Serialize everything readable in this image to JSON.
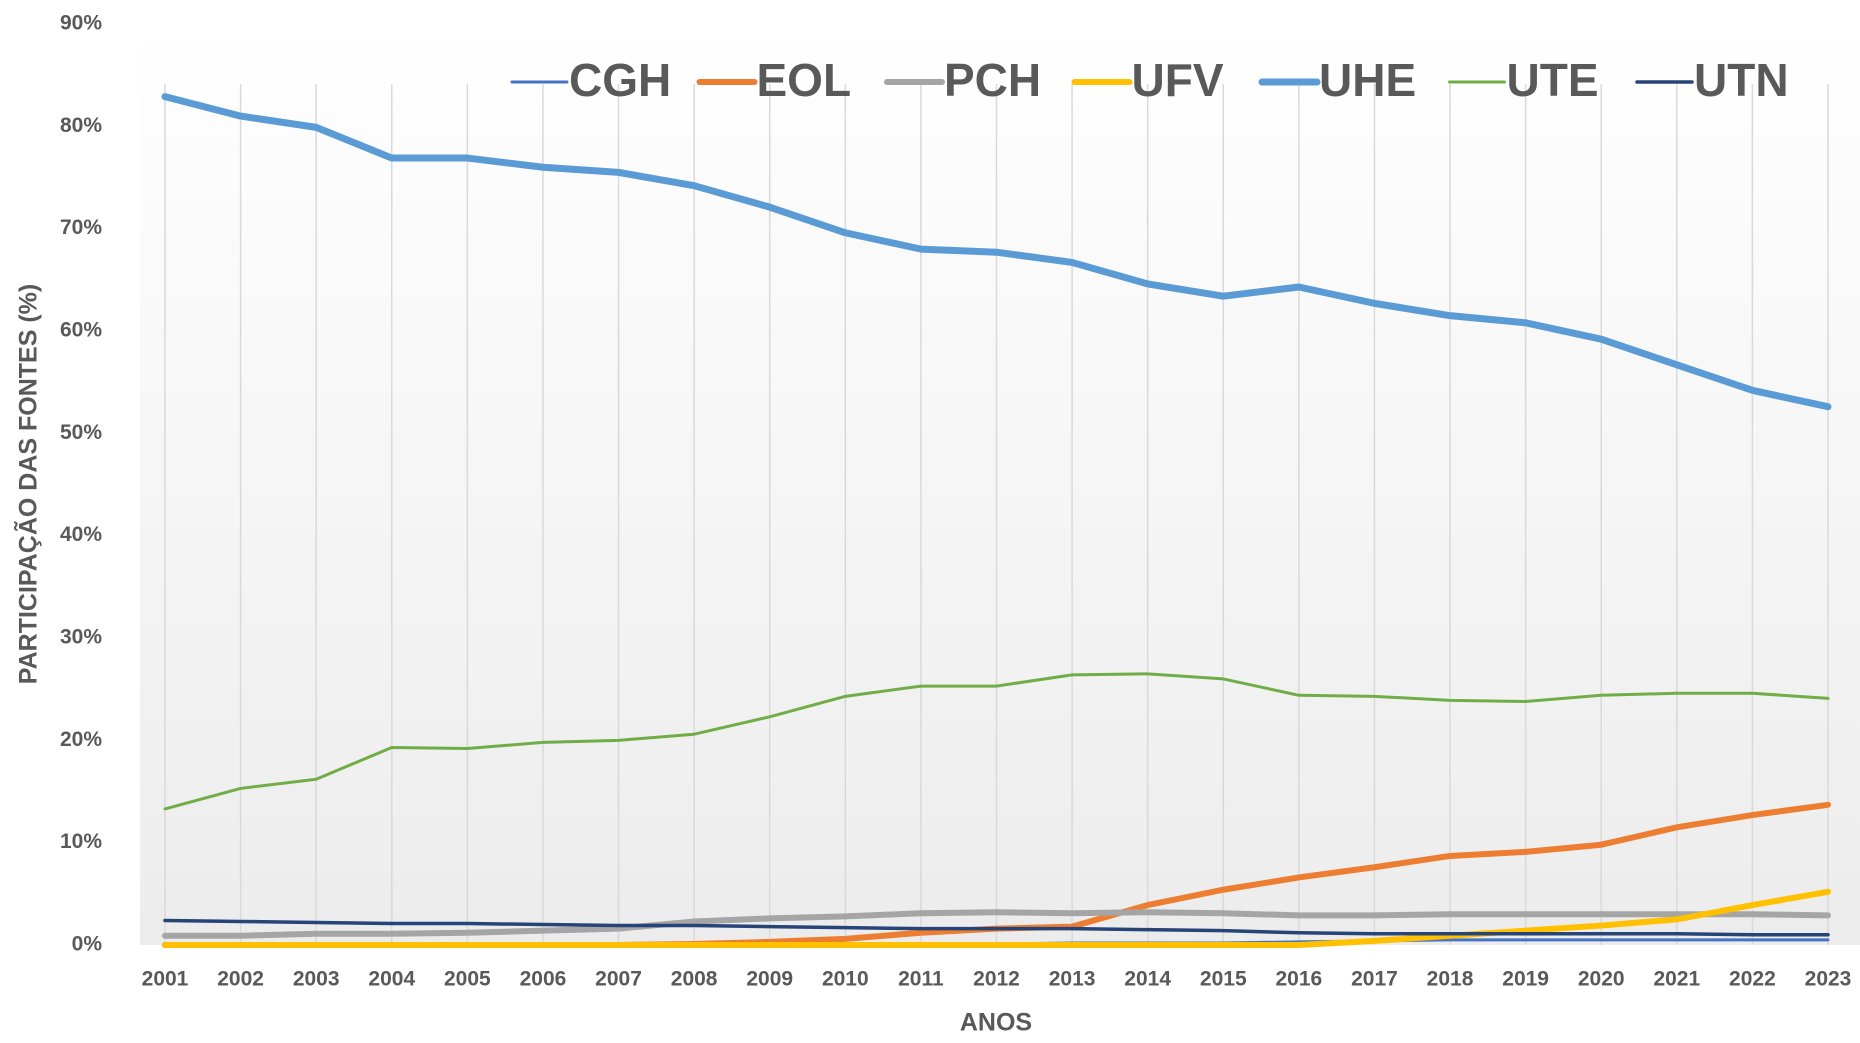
{
  "chart_data": {
    "type": "line",
    "y_label": "PARTICIPAÇÃO DAS FONTES (%)",
    "x_label": "ANOS",
    "categories": [
      "2001",
      "2002",
      "2003",
      "2004",
      "2005",
      "2006",
      "2007",
      "2008",
      "2009",
      "2010",
      "2011",
      "2012",
      "2013",
      "2014",
      "2015",
      "2016",
      "2017",
      "2018",
      "2019",
      "2020",
      "2021",
      "2022",
      "2023"
    ],
    "ylim": [
      0,
      90
    ],
    "yticks": [
      {
        "value": 0,
        "label": "0%"
      },
      {
        "value": 10,
        "label": "10%"
      },
      {
        "value": 20,
        "label": "20%"
      },
      {
        "value": 30,
        "label": "30%"
      },
      {
        "value": 40,
        "label": "40%"
      },
      {
        "value": 50,
        "label": "50%"
      },
      {
        "value": 60,
        "label": "60%"
      },
      {
        "value": 70,
        "label": "70%"
      },
      {
        "value": 80,
        "label": "80%"
      },
      {
        "value": 90,
        "label": "90%"
      }
    ],
    "grid": "x",
    "legend": "top",
    "series": [
      {
        "name": "CGH",
        "color": "#4472c4",
        "values": [
          0.1,
          0.1,
          0.1,
          0.1,
          0.1,
          0.1,
          0.1,
          0.1,
          0.1,
          0.1,
          0.1,
          0.1,
          0.2,
          0.2,
          0.2,
          0.3,
          0.4,
          0.5,
          0.5,
          0.5,
          0.5,
          0.5,
          0.5
        ]
      },
      {
        "name": "EOL",
        "color": "#ed7d31",
        "values": [
          0,
          0,
          0,
          0,
          0,
          0,
          0,
          0.1,
          0.3,
          0.6,
          1.2,
          1.6,
          1.8,
          3.9,
          5.4,
          6.6,
          7.6,
          8.7,
          9.1,
          9.8,
          11.5,
          12.7,
          13.7
        ]
      },
      {
        "name": "PCH",
        "color": "#a5a5a5",
        "values": [
          0.9,
          0.9,
          1.1,
          1.1,
          1.2,
          1.4,
          1.6,
          2.3,
          2.6,
          2.8,
          3.1,
          3.2,
          3.1,
          3.2,
          3.1,
          2.9,
          2.9,
          3.0,
          3.0,
          3.0,
          3.0,
          3.0,
          2.9
        ]
      },
      {
        "name": "UFV",
        "color": "#ffc000",
        "values": [
          0,
          0,
          0,
          0,
          0,
          0,
          0,
          0,
          0,
          0,
          0,
          0,
          0,
          0,
          0,
          0,
          0.4,
          0.9,
          1.4,
          1.9,
          2.5,
          3.9,
          5.2
        ]
      },
      {
        "name": "UHE",
        "color": "#5b9bd5",
        "values": [
          82.9,
          81.0,
          79.9,
          76.9,
          76.9,
          76.0,
          75.5,
          74.2,
          72.1,
          69.6,
          68.0,
          67.7,
          66.7,
          64.6,
          63.4,
          64.3,
          62.7,
          61.5,
          60.8,
          59.2,
          56.7,
          54.2,
          52.6
        ]
      },
      {
        "name": "UTE",
        "color": "#70ad47",
        "values": [
          13.3,
          15.3,
          16.2,
          19.3,
          19.2,
          19.8,
          20.0,
          20.6,
          22.3,
          24.3,
          25.3,
          25.3,
          26.4,
          26.5,
          26.0,
          24.4,
          24.3,
          23.9,
          23.8,
          24.4,
          24.6,
          24.6,
          24.1
        ]
      },
      {
        "name": "UTN",
        "color": "#264478",
        "values": [
          2.4,
          2.3,
          2.2,
          2.1,
          2.1,
          2.0,
          1.9,
          1.9,
          1.8,
          1.7,
          1.6,
          1.6,
          1.6,
          1.5,
          1.4,
          1.2,
          1.1,
          1.1,
          1.1,
          1.1,
          1.1,
          1.0,
          1.0
        ]
      }
    ]
  }
}
